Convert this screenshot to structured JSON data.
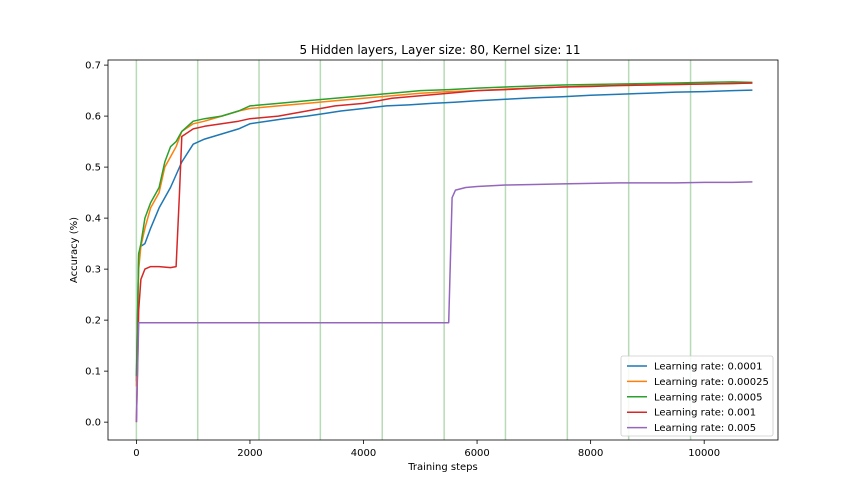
{
  "chart_data": {
    "type": "line",
    "title": "5 Hidden layers, Layer size: 80, Kernel size: 11",
    "xlabel": "Training steps",
    "ylabel": "Accuracy (%)",
    "xlim": [
      -500,
      11300
    ],
    "ylim": [
      -0.035,
      0.71
    ],
    "xticks": [
      0,
      2000,
      4000,
      6000,
      8000,
      10000
    ],
    "xtick_labels": [
      "0",
      "2000",
      "4000",
      "6000",
      "8000",
      "10000"
    ],
    "yticks": [
      0.0,
      0.1,
      0.2,
      0.3,
      0.4,
      0.5,
      0.6,
      0.7
    ],
    "ytick_labels": [
      "0.0",
      "0.1",
      "0.2",
      "0.3",
      "0.4",
      "0.5",
      "0.6",
      "0.7"
    ],
    "vlines": {
      "x": [
        0,
        1080,
        2160,
        3240,
        4330,
        5420,
        6500,
        7590,
        8670,
        9760
      ],
      "color": "#b6dbb6"
    },
    "grid": false,
    "legend": "lower-right",
    "series": [
      {
        "name": "Learning rate: 0.0001",
        "color": "#1f77b4",
        "x": [
          0,
          40,
          80,
          150,
          250,
          400,
          600,
          800,
          1000,
          1200,
          1500,
          1800,
          2000,
          2300,
          2600,
          3000,
          3300,
          3600,
          4000,
          4400,
          4800,
          5200,
          5600,
          6000,
          6500,
          7000,
          7500,
          8000,
          8500,
          9000,
          9500,
          10000,
          10500,
          10850
        ],
        "y": [
          0.08,
          0.33,
          0.345,
          0.35,
          0.38,
          0.42,
          0.46,
          0.51,
          0.545,
          0.555,
          0.565,
          0.575,
          0.585,
          0.59,
          0.595,
          0.6,
          0.605,
          0.61,
          0.615,
          0.62,
          0.622,
          0.625,
          0.627,
          0.63,
          0.633,
          0.636,
          0.638,
          0.641,
          0.643,
          0.645,
          0.647,
          0.648,
          0.65,
          0.651
        ]
      },
      {
        "name": "Learning rate: 0.00025",
        "color": "#ff7f0e",
        "x": [
          0,
          40,
          80,
          150,
          250,
          400,
          500,
          600,
          700,
          800,
          1000,
          1200,
          1500,
          1800,
          2000,
          2500,
          3000,
          3500,
          4000,
          4500,
          5000,
          5500,
          6000,
          6500,
          7000,
          7500,
          8000,
          8500,
          9000,
          9500,
          10000,
          10500,
          10850
        ],
        "y": [
          0.07,
          0.3,
          0.345,
          0.38,
          0.42,
          0.45,
          0.5,
          0.52,
          0.54,
          0.57,
          0.585,
          0.59,
          0.6,
          0.61,
          0.615,
          0.62,
          0.625,
          0.63,
          0.635,
          0.64,
          0.645,
          0.648,
          0.65,
          0.653,
          0.655,
          0.657,
          0.659,
          0.66,
          0.661,
          0.662,
          0.663,
          0.664,
          0.665
        ]
      },
      {
        "name": "Learning rate: 0.0005",
        "color": "#2ca02c",
        "x": [
          0,
          40,
          80,
          150,
          250,
          400,
          500,
          600,
          700,
          800,
          1000,
          1200,
          1500,
          1800,
          2000,
          2500,
          3000,
          3500,
          4000,
          4500,
          5000,
          5500,
          6000,
          6500,
          7000,
          7500,
          8000,
          8500,
          9000,
          9500,
          10000,
          10500,
          10850
        ],
        "y": [
          0.09,
          0.33,
          0.35,
          0.4,
          0.43,
          0.46,
          0.51,
          0.54,
          0.55,
          0.57,
          0.59,
          0.595,
          0.6,
          0.61,
          0.62,
          0.625,
          0.63,
          0.635,
          0.64,
          0.645,
          0.65,
          0.652,
          0.655,
          0.657,
          0.659,
          0.661,
          0.662,
          0.663,
          0.664,
          0.665,
          0.666,
          0.667,
          0.666
        ]
      },
      {
        "name": "Learning rate: 0.001",
        "color": "#d62728",
        "x": [
          0,
          40,
          80,
          150,
          250,
          400,
          600,
          700,
          760,
          800,
          1000,
          1200,
          1500,
          1800,
          2000,
          2500,
          3000,
          3500,
          4000,
          4500,
          5000,
          5500,
          6000,
          6500,
          7000,
          7500,
          8000,
          8500,
          9000,
          9500,
          10000,
          10500,
          10850
        ],
        "y": [
          0.0,
          0.22,
          0.28,
          0.3,
          0.305,
          0.305,
          0.303,
          0.305,
          0.45,
          0.56,
          0.575,
          0.58,
          0.585,
          0.59,
          0.595,
          0.6,
          0.61,
          0.62,
          0.625,
          0.635,
          0.64,
          0.645,
          0.65,
          0.652,
          0.655,
          0.657,
          0.658,
          0.66,
          0.661,
          0.662,
          0.663,
          0.664,
          0.665
        ]
      },
      {
        "name": "Learning rate: 0.005",
        "color": "#9467bd",
        "x": [
          0,
          40,
          80,
          300,
          1000,
          2000,
          3000,
          4000,
          5000,
          5500,
          5560,
          5620,
          5800,
          6000,
          6500,
          7000,
          7500,
          8000,
          8500,
          9000,
          9500,
          10000,
          10500,
          10850
        ],
        "y": [
          0.0,
          0.195,
          0.195,
          0.195,
          0.195,
          0.195,
          0.195,
          0.195,
          0.195,
          0.195,
          0.44,
          0.455,
          0.46,
          0.462,
          0.465,
          0.466,
          0.467,
          0.468,
          0.469,
          0.469,
          0.469,
          0.47,
          0.47,
          0.471
        ]
      }
    ]
  }
}
